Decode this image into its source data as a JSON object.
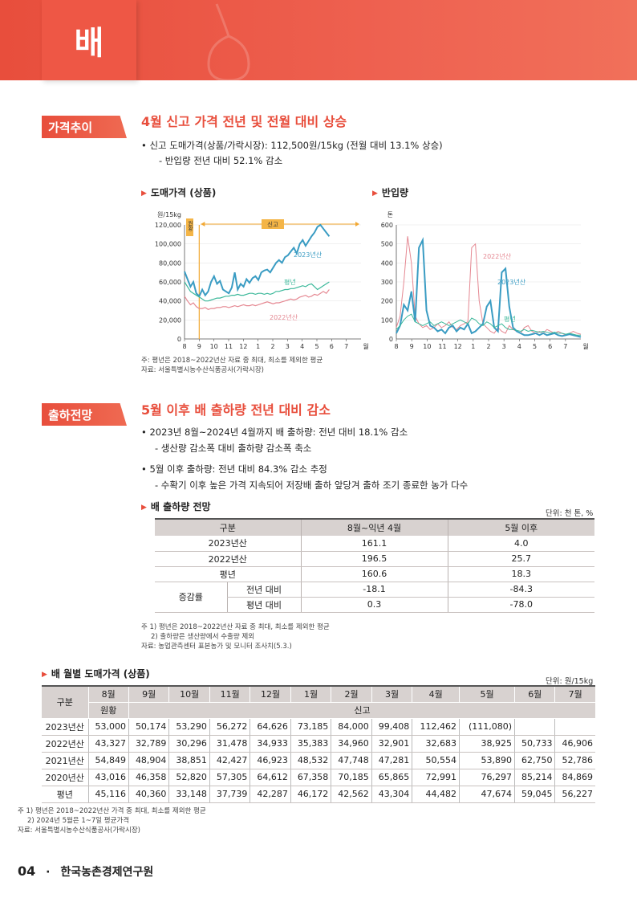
{
  "header": {
    "title": "배"
  },
  "section1": {
    "tag": "가격추이",
    "title": "4월 신고 가격 전년 및 전월 대비 상승",
    "bullet1": "• 신고 도매가격(상품/가락시장): 112,500원/15kg (전월 대비 13.1% 상승)",
    "sub1": "- 반입량 전년 대비 52.1% 감소"
  },
  "chart_left": {
    "heading": "도매가격 (상품)",
    "note1": "주: 평년은 2018~2022년산 자료 중 최대, 최소를 제외한 평균",
    "note2": "자료: 서울특별시농수산식품공사(가락시장)"
  },
  "chart_right": {
    "heading": "반입량"
  },
  "chart_data": [
    {
      "type": "line",
      "ylabel": "원/15kg",
      "xlabel": "월",
      "ylim": [
        0,
        120000
      ],
      "yticks": [
        "0",
        "20,000",
        "40,000",
        "60,000",
        "80,000",
        "100,000",
        "120,000"
      ],
      "xticks": [
        "8",
        "9",
        "10",
        "11",
        "12",
        "1",
        "2",
        "3",
        "4",
        "5",
        "6",
        "7"
      ],
      "annotations": [
        "원황",
        "신고"
      ],
      "series": [
        {
          "name": "2023년산",
          "color": "#3a9cc3",
          "values": [
            71000,
            63000,
            55000,
            60000,
            48000,
            45000,
            52000,
            46000,
            50000,
            60000,
            66000,
            58000,
            61000,
            52000,
            50000,
            48000,
            54000,
            70000,
            52000,
            58000,
            55000,
            63000,
            59000,
            64000,
            66000,
            62000,
            70000,
            72000,
            73000,
            70000,
            75000,
            80000,
            83000,
            80000,
            86000,
            88000,
            92000,
            96000,
            90000,
            100000,
            104000,
            98000,
            103000,
            108000,
            112000,
            118000,
            120000,
            116000,
            112000,
            108000
          ]
        },
        {
          "name": "평년",
          "color": "#3bb89a",
          "values": [
            60000,
            55000,
            50000,
            48000,
            46000,
            44000,
            42000,
            40000,
            40000,
            41000,
            42000,
            43000,
            43000,
            44000,
            45000,
            45000,
            46000,
            46000,
            47000,
            46000,
            46000,
            47000,
            48000,
            48000,
            47000,
            48000,
            48000,
            47000,
            48000,
            47000,
            48000,
            50000,
            50000,
            51000,
            52000,
            52000,
            53000,
            53000,
            54000,
            55000,
            56000,
            55000,
            57000,
            58000,
            55000,
            52000,
            54000,
            56000,
            58000,
            60000
          ]
        },
        {
          "name": "2022년산",
          "color": "#e58892",
          "values": [
            45000,
            40000,
            36000,
            38000,
            34000,
            32000,
            32000,
            33000,
            31000,
            32000,
            32000,
            33000,
            33000,
            34000,
            34000,
            33000,
            34000,
            35000,
            34000,
            35000,
            36000,
            35000,
            35000,
            36000,
            35000,
            36000,
            37000,
            38000,
            39000,
            38000,
            37000,
            38000,
            38000,
            39000,
            40000,
            41000,
            42000,
            41000,
            42000,
            44000,
            45000,
            46000,
            44000,
            45000,
            47000,
            46000,
            48000,
            50000,
            48000,
            52000
          ]
        }
      ]
    },
    {
      "type": "line",
      "ylabel": "톤",
      "xlabel": "월",
      "ylim": [
        0,
        600
      ],
      "yticks": [
        "0",
        "100",
        "200",
        "300",
        "400",
        "500",
        "600"
      ],
      "xticks": [
        "8",
        "9",
        "10",
        "11",
        "12",
        "1",
        "2",
        "3",
        "4",
        "5",
        "6",
        "7"
      ],
      "series": [
        {
          "name": "2022년산",
          "color": "#e58892",
          "values": [
            60,
            120,
            300,
            540,
            400,
            120,
            80,
            60,
            70,
            50,
            60,
            80,
            60,
            70,
            90,
            60,
            50,
            70,
            80,
            90,
            480,
            500,
            200,
            80,
            60,
            40,
            30,
            60,
            40,
            30,
            70,
            50,
            40,
            30,
            60,
            70,
            40,
            30,
            40,
            30,
            50,
            40,
            30,
            40,
            30,
            20,
            30,
            40,
            30,
            25
          ]
        },
        {
          "name": "2023년산",
          "color": "#3a9cc3",
          "values": [
            30,
            70,
            180,
            150,
            250,
            90,
            480,
            520,
            150,
            70,
            60,
            40,
            50,
            30,
            60,
            70,
            40,
            60,
            50,
            80,
            30,
            40,
            60,
            80,
            170,
            200,
            60,
            40,
            350,
            370,
            170,
            60,
            40,
            30,
            20,
            20,
            25,
            30,
            20,
            30,
            20,
            25,
            30,
            20,
            15,
            20,
            25,
            20,
            15,
            10
          ]
        },
        {
          "name": "평년",
          "color": "#3bb89a",
          "values": [
            50,
            70,
            100,
            120,
            130,
            90,
            80,
            70,
            80,
            90,
            70,
            80,
            90,
            80,
            70,
            80,
            90,
            100,
            90,
            80,
            110,
            100,
            80,
            70,
            90,
            80,
            60,
            70,
            80,
            60,
            50,
            50,
            45,
            40,
            50,
            40,
            45,
            40,
            35,
            40,
            35,
            30,
            35,
            30,
            30,
            25,
            30,
            25,
            20,
            20
          ]
        }
      ]
    }
  ],
  "section2": {
    "tag": "출하전망",
    "title": "5월 이후 배 출하량 전년 대비 감소",
    "bullet1": "• 2023년 8월~2024년 4월까지 배 출하량: 전년 대비 18.1% 감소",
    "sub1": "- 생산량 감소폭 대비 출하량 감소폭 축소",
    "bullet2": "• 5월 이후 출하량: 전년 대비 84.3% 감소 추정",
    "sub2": "- 수확기 이후 높은 가격 지속되어 저장배 출하 앞당겨 출하 조기 종료한 농가 다수"
  },
  "table1": {
    "heading": "배 출하량 전망",
    "unit": "단위: 천 톤, %",
    "headers": [
      "구분",
      "8월~익년 4월",
      "5월 이후"
    ],
    "rows": [
      {
        "label": "2023년산",
        "a": "161.1",
        "b": "4.0"
      },
      {
        "label": "2022년산",
        "a": "196.5",
        "b": "25.7"
      },
      {
        "label": "평년",
        "a": "160.6",
        "b": "18.3"
      }
    ],
    "group_label": "증감률",
    "sub_rows": [
      {
        "label": "전년 대비",
        "a": "-18.1",
        "b": "-84.3"
      },
      {
        "label": "평년 대비",
        "a": "0.3",
        "b": "-78.0"
      }
    ],
    "note1": "주 1) 평년은 2018~2022년산 자료 중 최대, 최소를 제외한 평균",
    "note2": "2) 출하량은 생산량에서 수출량 제외",
    "note3": "자료: 농업관측센터 표본농가 및 모니터 조사치(5.3.)"
  },
  "table2": {
    "heading": "배 월별 도매가격 (상품)",
    "unit": "단위: 원/15kg",
    "corner": "구분",
    "months": [
      "8월",
      "9월",
      "10월",
      "11월",
      "12월",
      "1월",
      "2월",
      "3월",
      "4월",
      "5월",
      "6월",
      "7월"
    ],
    "variety1": "원황",
    "variety2": "신고",
    "rows": [
      {
        "label": "2023년산",
        "cells": [
          "53,000",
          "50,174",
          "53,290",
          "56,272",
          "64,626",
          "73,185",
          "84,000",
          "99,408",
          "112,462",
          "(111,080)",
          "",
          ""
        ]
      },
      {
        "label": "2022년산",
        "cells": [
          "43,327",
          "32,789",
          "30,296",
          "31,478",
          "34,933",
          "35,383",
          "34,960",
          "32,901",
          "32,683",
          "38,925",
          "50,733",
          "46,906"
        ]
      },
      {
        "label": "2021년산",
        "cells": [
          "54,849",
          "48,904",
          "38,851",
          "42,427",
          "46,923",
          "48,532",
          "47,748",
          "47,281",
          "50,554",
          "53,890",
          "62,750",
          "52,786"
        ]
      },
      {
        "label": "2020년산",
        "cells": [
          "43,016",
          "46,358",
          "52,820",
          "57,305",
          "64,612",
          "67,358",
          "70,185",
          "65,865",
          "72,991",
          "76,297",
          "85,214",
          "84,869"
        ]
      },
      {
        "label": "평년",
        "cells": [
          "45,116",
          "40,360",
          "33,148",
          "37,739",
          "42,287",
          "46,172",
          "42,562",
          "43,304",
          "44,482",
          "47,674",
          "59,045",
          "56,227"
        ]
      }
    ],
    "note1": "주 1) 평년은 2018~2022년산 가격 중 최대, 최소를 제외한 평균",
    "note2": "2) 2024년 5월은 1~7일 평균가격",
    "note3": "자료: 서울특별시농수산식품공사(가락시장)"
  },
  "footer": {
    "page": "04",
    "dot": "·",
    "org": "한국농촌경제연구원"
  }
}
